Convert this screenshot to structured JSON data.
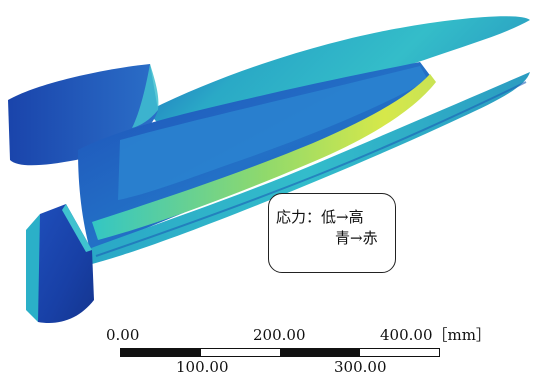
{
  "legend": {
    "line1": "応力：低→高",
    "line2": "青→赤"
  },
  "scale": {
    "top_labels": [
      "0.00",
      "200.00",
      "400.00［mm］"
    ],
    "bottom_labels": [
      "100.00",
      "300.00"
    ],
    "segments": [
      "black",
      "white",
      "black",
      "white"
    ]
  },
  "colors": {
    "stress_low": "#1a3fae",
    "stress_mid": "#2bb3c8",
    "stress_high": "#d6e84a"
  }
}
